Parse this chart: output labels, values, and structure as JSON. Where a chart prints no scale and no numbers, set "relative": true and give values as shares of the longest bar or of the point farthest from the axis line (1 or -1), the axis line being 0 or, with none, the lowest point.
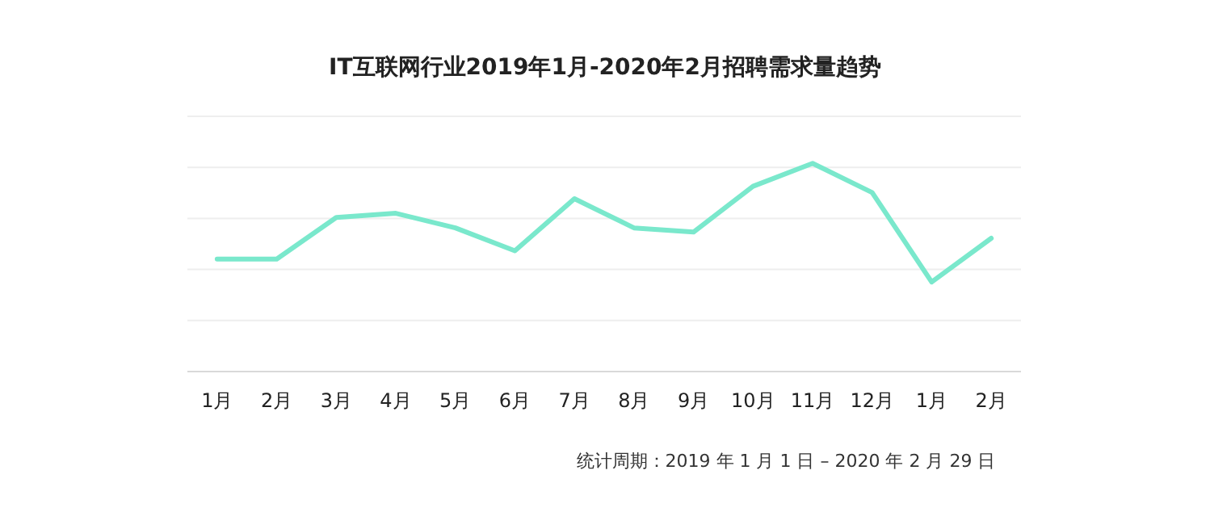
{
  "chart_data": {
    "type": "line",
    "title": "IT互联网行业2019年1月-2020年2月招聘需求量趋势",
    "categories": [
      "1月",
      "2月",
      "3月",
      "4月",
      "5月",
      "6月",
      "7月",
      "8月",
      "9月",
      "10月",
      "11月",
      "12月",
      "1月",
      "2月"
    ],
    "series": [
      {
        "color": "#7ae8cc",
        "values": [
          0.54,
          0.54,
          0.74,
          0.76,
          0.69,
          0.58,
          0.83,
          0.69,
          0.67,
          0.89,
          1,
          0.86,
          0.43,
          0.64
        ]
      }
    ],
    "relative": true,
    "grid": true,
    "marker": "none",
    "line_style": "solid",
    "annotations": [
      "统计周期：2019 年 1 月 1 日 – 2020 年 2 月 29 日"
    ]
  }
}
